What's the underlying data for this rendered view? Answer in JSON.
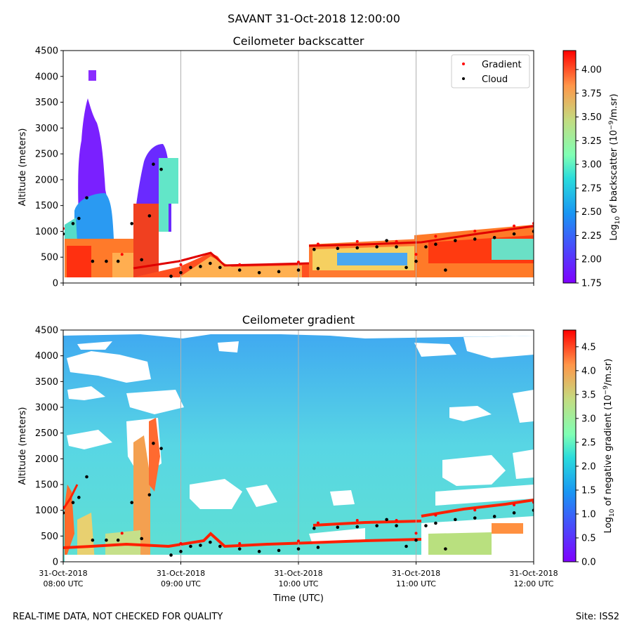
{
  "figure": {
    "suptitle": "SAVANT 31-Oct-2018 12:00:00",
    "footer_left": "REAL-TIME DATA, NOT CHECKED FOR QUALITY",
    "footer_right": "Site: ISS2"
  },
  "chart_data": [
    {
      "type": "heatmap",
      "title": "Ceilometer backscatter",
      "xlabel": "",
      "ylabel": "Altitude (meters)",
      "xlim": [
        "2018-10-31 08:00",
        "2018-10-31 12:00"
      ],
      "ylim": [
        0,
        4500
      ],
      "y_ticks": [
        0,
        500,
        1000,
        1500,
        2000,
        2500,
        3000,
        3500,
        4000,
        4500
      ],
      "x_ticks": [
        "2018-10-31 08:00",
        "2018-10-31 09:00",
        "2018-10-31 10:00",
        "2018-10-31 11:00",
        "2018-10-31 12:00"
      ],
      "x_tick_labels_shown": false,
      "grid": "vertical",
      "colormap": "rainbow",
      "colorbar": {
        "label_prefix": "Log",
        "label_sub": "10",
        "label_mid": " of backscatter (10",
        "label_sup": "−9",
        "label_suffix": "/m.sr)",
        "range": [
          1.75,
          4.2
        ],
        "ticks": [
          "1.75",
          "2.00",
          "2.25",
          "2.50",
          "2.75",
          "3.00",
          "3.25",
          "3.50",
          "3.75",
          "4.00"
        ]
      },
      "legend": {
        "placement": "upper-right",
        "entries": [
          {
            "label": "Gradient",
            "color": "#ff0000",
            "marker": "dot"
          },
          {
            "label": "Cloud",
            "color": "#000000",
            "marker": "dot"
          }
        ]
      }
    },
    {
      "type": "heatmap",
      "title": "Ceilometer gradient",
      "xlabel": "Time (UTC)",
      "ylabel": "Altitude (meters)",
      "xlim": [
        "2018-10-31 08:00",
        "2018-10-31 12:00"
      ],
      "ylim": [
        0,
        4500
      ],
      "y_ticks": [
        0,
        500,
        1000,
        1500,
        2000,
        2500,
        3000,
        3500,
        4000,
        4500
      ],
      "x_ticks": [
        "2018-10-31 08:00",
        "2018-10-31 09:00",
        "2018-10-31 10:00",
        "2018-10-31 11:00",
        "2018-10-31 12:00"
      ],
      "x_tick_labels": [
        [
          "31-Oct-2018",
          "08:00 UTC"
        ],
        [
          "31-Oct-2018",
          "09:00 UTC"
        ],
        [
          "31-Oct-2018",
          "10:00 UTC"
        ],
        [
          "31-Oct-2018",
          "11:00 UTC"
        ],
        [
          "31-Oct-2018",
          "12:00 UTC"
        ]
      ],
      "grid": "vertical",
      "colormap": "rainbow",
      "colorbar": {
        "label_prefix": "Log",
        "label_sub": "10",
        "label_mid": " of negative gradient (10",
        "label_sup": "−9",
        "label_suffix": "/m.sr)",
        "range": [
          0,
          4.85
        ],
        "ticks": [
          "0.0",
          "0.5",
          "1.0",
          "1.5",
          "2.0",
          "2.5",
          "3.0",
          "3.5",
          "4.0",
          "4.5"
        ]
      }
    }
  ],
  "series": {
    "cloud_base": {
      "name": "Cloud",
      "unit": "m",
      "points": [
        [
          "08:00",
          950
        ],
        [
          "08:05",
          1150
        ],
        [
          "08:08",
          1250
        ],
        [
          "08:12",
          1650
        ],
        [
          "08:15",
          420
        ],
        [
          "08:22",
          420
        ],
        [
          "08:28",
          420
        ],
        [
          "08:35",
          1150
        ],
        [
          "08:40",
          450
        ],
        [
          "08:44",
          1300
        ],
        [
          "08:46",
          2300
        ],
        [
          "08:50",
          2200
        ],
        [
          "08:55",
          130
        ],
        [
          "09:00",
          200
        ],
        [
          "09:05",
          300
        ],
        [
          "09:10",
          320
        ],
        [
          "09:15",
          380
        ],
        [
          "09:20",
          300
        ],
        [
          "09:30",
          250
        ],
        [
          "09:40",
          200
        ],
        [
          "09:50",
          220
        ],
        [
          "10:00",
          250
        ],
        [
          "10:10",
          280
        ],
        [
          "10:08",
          650
        ],
        [
          "10:20",
          670
        ],
        [
          "10:30",
          680
        ],
        [
          "10:40",
          700
        ],
        [
          "10:45",
          820
        ],
        [
          "10:50",
          700
        ],
        [
          "10:55",
          300
        ],
        [
          "11:00",
          420
        ],
        [
          "11:05",
          700
        ],
        [
          "11:10",
          750
        ],
        [
          "11:15",
          250
        ],
        [
          "11:20",
          820
        ],
        [
          "11:30",
          850
        ],
        [
          "11:40",
          880
        ],
        [
          "11:50",
          950
        ],
        [
          "12:00",
          1000
        ]
      ]
    },
    "gradient_layer": {
      "name": "Gradient",
      "unit": "m",
      "points": [
        [
          "08:00",
          1000
        ],
        [
          "08:30",
          500
        ],
        [
          "09:00",
          300
        ],
        [
          "09:30",
          300
        ],
        [
          "10:00",
          350
        ],
        [
          "10:10",
          700
        ],
        [
          "10:30",
          750
        ],
        [
          "10:50",
          750
        ],
        [
          "11:00",
          500
        ],
        [
          "11:10",
          850
        ],
        [
          "11:30",
          950
        ],
        [
          "11:50",
          1050
        ],
        [
          "12:00",
          1100
        ]
      ]
    }
  }
}
